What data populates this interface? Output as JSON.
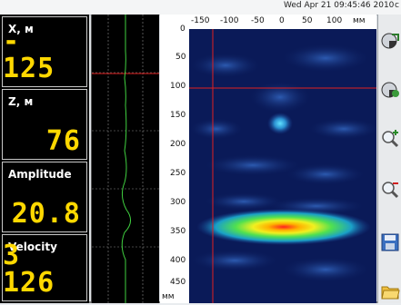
{
  "header": {
    "datetime": "Wed Apr 21 09:45:46 2010",
    "edge_text": "c"
  },
  "readouts": [
    {
      "label": "X, м",
      "value": "- 125"
    },
    {
      "label": "Z, м",
      "value": "76"
    },
    {
      "label": "Amplitude",
      "value": "20.8"
    },
    {
      "label": "Velocity",
      "value": "3 126"
    }
  ],
  "radar": {
    "x_ticks": [
      "-150",
      "-100",
      "-50",
      "0",
      "50",
      "100",
      "мм"
    ],
    "y_ticks": [
      "0",
      "50",
      "100",
      "150",
      "200",
      "250",
      "300",
      "350",
      "400",
      "450",
      "мм"
    ]
  },
  "toolbar": {
    "icons": [
      "disk-rotate-icon",
      "disk-settings-icon",
      "zoom-in-icon",
      "zoom-out-icon",
      "save-icon",
      "open-folder-icon"
    ]
  },
  "colors": {
    "readout": "#ffd800",
    "crosshair": "#e02020",
    "trace": "#40d040",
    "scan_bg": "#0a1a58"
  }
}
